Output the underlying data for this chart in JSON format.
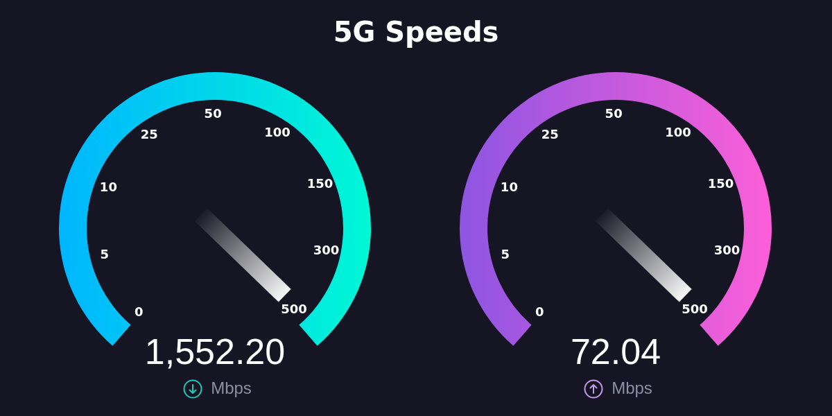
{
  "chart_data": [
    {
      "type": "other",
      "title": "5G Speeds",
      "values": [
        1552.2
      ],
      "value_labels": [
        "1,552.20"
      ],
      "xlabel": "Mbps",
      "annotations": [
        "0",
        "5",
        "10",
        "25",
        "50",
        "100",
        "150",
        "300",
        "500"
      ]
    },
    {
      "type": "other",
      "values": [
        72.04
      ],
      "value_labels": [
        "72.04"
      ],
      "xlabel": "Mbps",
      "annotations": [
        "0",
        "5",
        "10",
        "25",
        "50",
        "100",
        "150",
        "300",
        "500"
      ]
    }
  ]
}
